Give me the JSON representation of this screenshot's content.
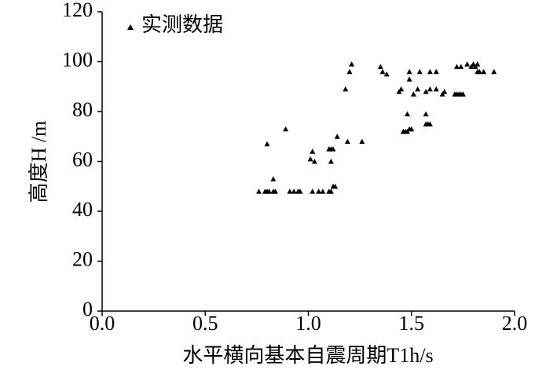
{
  "chart_data": {
    "type": "scatter",
    "x_label": "水平横向基本自震周期T1h/s",
    "y_label": "高度H /m",
    "xlim": [
      0,
      2.0
    ],
    "ylim": [
      0,
      120
    ],
    "xticks": [
      {
        "value": 0,
        "label": "0.0"
      },
      0.5,
      {
        "value": 1,
        "label": "1.0"
      },
      1.5,
      {
        "value": 2,
        "label": "2.0"
      }
    ],
    "yticks": [
      0,
      20,
      40,
      60,
      80,
      100,
      120
    ],
    "series": [
      {
        "name": "实测数据",
        "color": "#000000",
        "x": [
          0.76,
          0.79,
          0.8,
          0.81,
          0.83,
          0.84,
          0.91,
          0.93,
          0.95,
          0.96,
          1.02,
          1.05,
          1.07,
          1.1,
          1.11,
          0.8,
          0.83,
          0.89,
          1.01,
          1.02,
          1.03,
          1.1,
          1.11,
          1.12,
          1.11,
          1.12,
          1.13,
          1.14,
          1.18,
          1.2,
          1.21,
          1.19,
          1.26,
          1.35,
          1.36,
          1.38,
          1.44,
          1.45,
          1.46,
          1.47,
          1.48,
          1.49,
          1.48,
          1.49,
          1.49,
          1.5,
          1.51,
          1.53,
          1.54,
          1.57,
          1.57,
          1.58,
          1.57,
          1.59,
          1.59,
          1.59,
          1.62,
          1.62,
          1.65,
          1.66,
          1.71,
          1.72,
          1.73,
          1.74,
          1.75,
          1.72,
          1.74,
          1.77,
          1.79,
          1.8,
          1.81,
          1.82,
          1.82,
          1.83,
          1.85,
          1.9
        ],
        "values": [
          48,
          48,
          48,
          48,
          48,
          48,
          48,
          48,
          48,
          48,
          48,
          48,
          48,
          48,
          48,
          67,
          53,
          73,
          61,
          64,
          60,
          65,
          65,
          65,
          60,
          50,
          50,
          70,
          89,
          96,
          99,
          68,
          68,
          98,
          96,
          95,
          88,
          89,
          72,
          72,
          72,
          73,
          79,
          96,
          93,
          73,
          87,
          89,
          96,
          88,
          79,
          75,
          75,
          75,
          89,
          96,
          96,
          89,
          87,
          88,
          87,
          87,
          87,
          87,
          87,
          98,
          98,
          99,
          98,
          99,
          98,
          99,
          96,
          96,
          96,
          96
        ]
      }
    ]
  }
}
